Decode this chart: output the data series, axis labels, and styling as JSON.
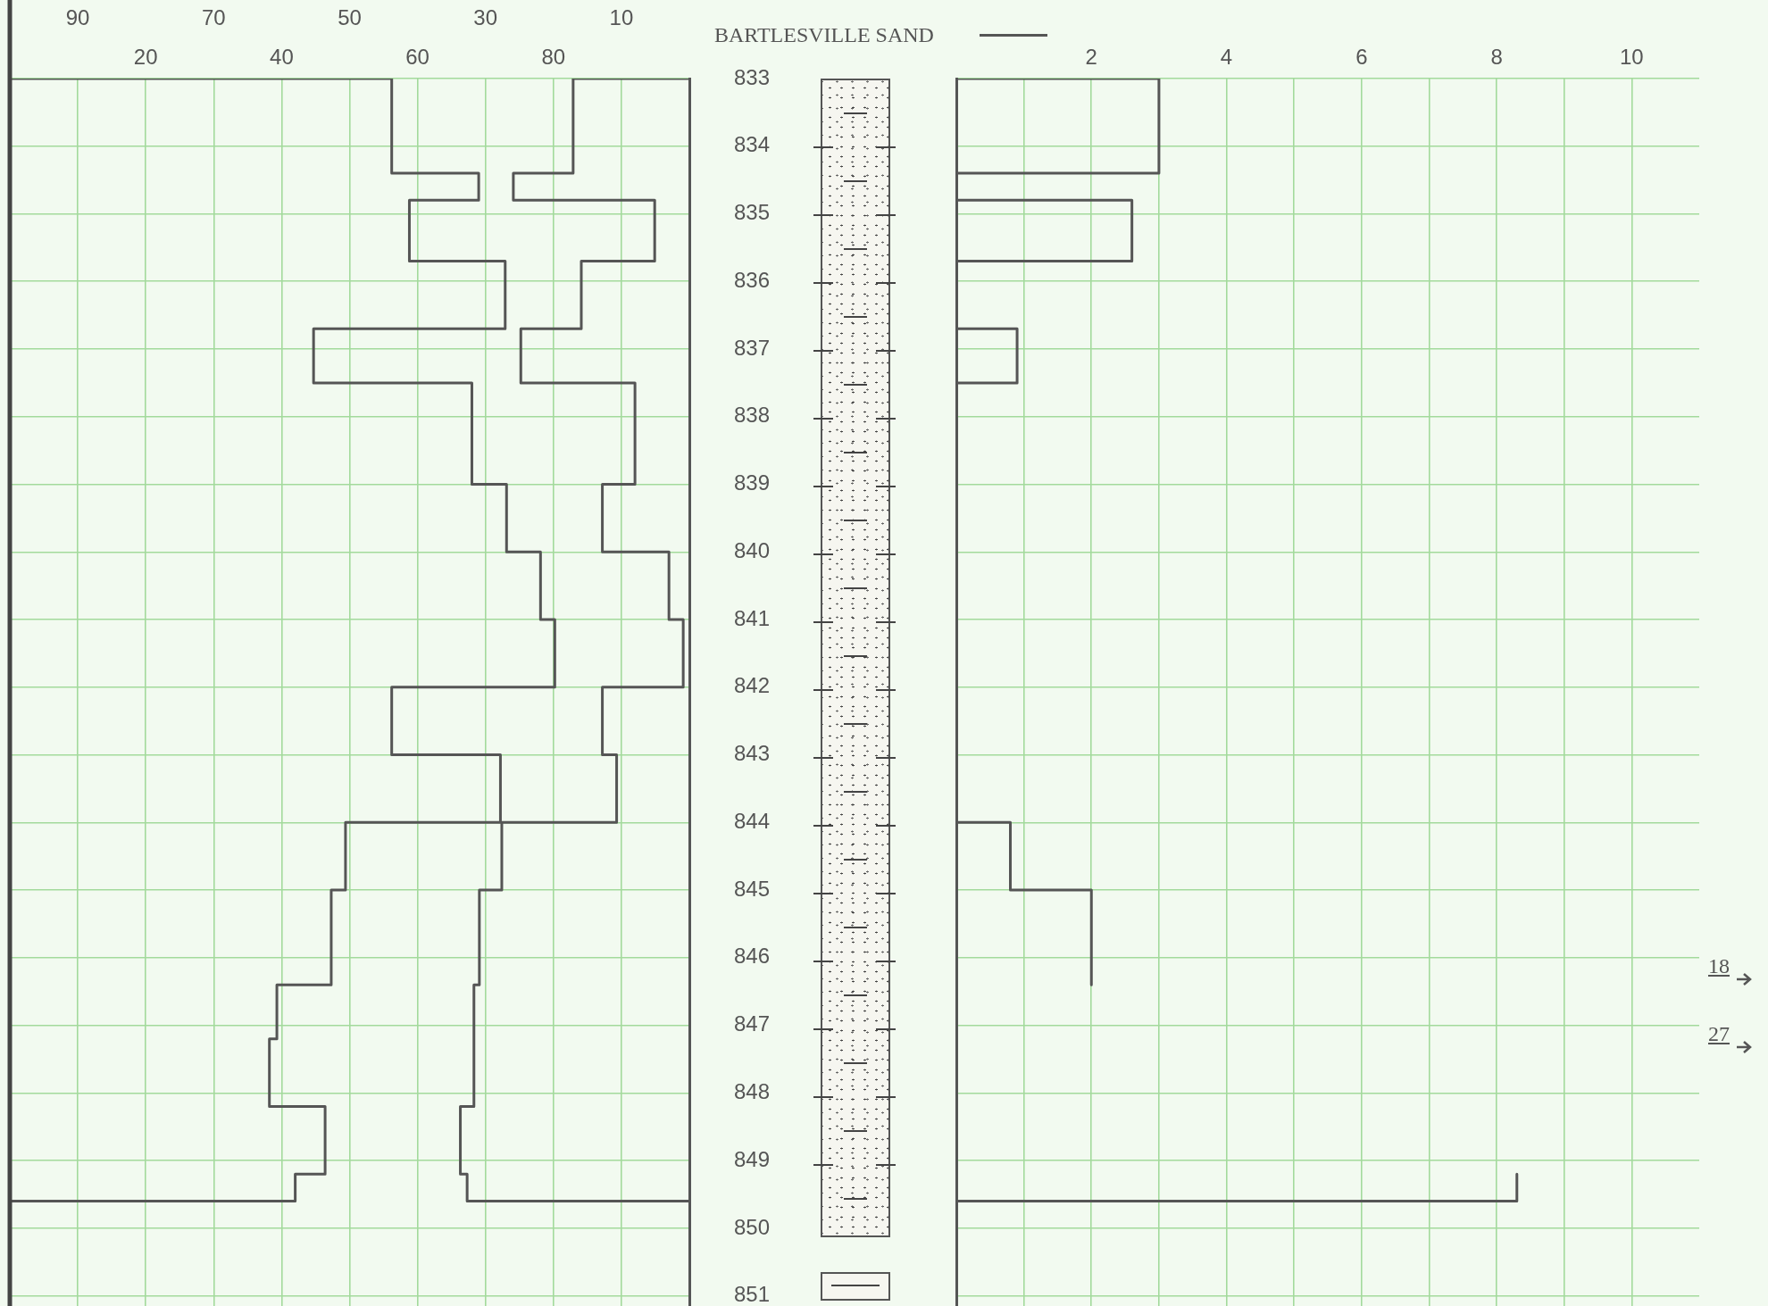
{
  "chart_data": [
    {
      "type": "step",
      "orientation": "horizontal",
      "annotations": [
        "BARTLESVILLE SAND"
      ],
      "xlim": [
        0,
        100
      ],
      "xticks": [
        20,
        40,
        60,
        80
      ],
      "x2lim": [
        100,
        0
      ],
      "x2ticks": [
        90,
        70,
        50,
        30,
        10
      ],
      "ylim": [
        851.15,
        833
      ],
      "yticks": [
        833,
        834,
        835,
        836,
        837,
        838,
        839,
        840,
        841,
        842,
        843,
        844,
        845,
        846,
        847,
        848,
        849,
        850,
        851
      ],
      "grid": true,
      "series": [
        {
          "color": "#555555",
          "x": [
            833,
            834.4,
            834.8,
            835.7,
            836.7,
            837.5,
            839.0,
            840.0,
            841.0,
            842.0,
            843.0,
            844.0,
            845.0,
            846.4,
            847.2,
            848.2,
            849.2,
            849.6,
            849.6
          ],
          "values": [
            0,
            56.2,
            69.0,
            58.8,
            72.9,
            44.7,
            68.0,
            73.1,
            78.1,
            80.2,
            56.2,
            72.2,
            49.4,
            47.3,
            39.3,
            38.2,
            46.4,
            42.0,
            0
          ]
        },
        {
          "color": "#555555",
          "axis": "x2",
          "x": [
            833,
            834.4,
            834.8,
            835.7,
            836.7,
            837.5,
            839.0,
            840.0,
            841.0,
            842.0,
            843.0,
            844.0,
            845.0,
            846.4,
            848.2,
            849.2,
            849.6,
            849.6
          ],
          "values": [
            0,
            17.1,
            25.9,
            5.1,
            15.9,
            24.8,
            8.0,
            12.8,
            3.0,
            0.9,
            12.8,
            10.7,
            27.6,
            30.9,
            31.7,
            33.7,
            32.7,
            0
          ]
        }
      ]
    },
    {
      "type": "step",
      "orientation": "horizontal",
      "xlim": [
        0,
        11
      ],
      "xticks": [
        {
          "value": 1,
          "label": null
        },
        2,
        {
          "value": 3,
          "label": null
        },
        4,
        {
          "value": 5,
          "label": null
        },
        6,
        {
          "value": 7,
          "label": null
        },
        8,
        {
          "value": 9,
          "label": null
        },
        10
      ],
      "ylim": [
        851.15,
        833
      ],
      "yticks": [
        833,
        834,
        835,
        836,
        837,
        838,
        839,
        840,
        841,
        842,
        843,
        844,
        845,
        846,
        847,
        848,
        849,
        850,
        851
      ],
      "tick_labels": "x",
      "grid": true,
      "annotations": [
        "18",
        "27"
      ],
      "series": [
        {
          "color": "#555555",
          "x": [
            833,
            834.4,
            834.8,
            835.7,
            836.7,
            837.5,
            844.0,
            845.0,
            846.4,
            849.2,
            849.6,
            849.6
          ],
          "values": [
            0,
            3.0,
            0,
            2.6,
            0,
            0.9,
            0,
            0.8,
            2.0,
            null,
            8.3,
            0
          ]
        }
      ]
    }
  ]
}
